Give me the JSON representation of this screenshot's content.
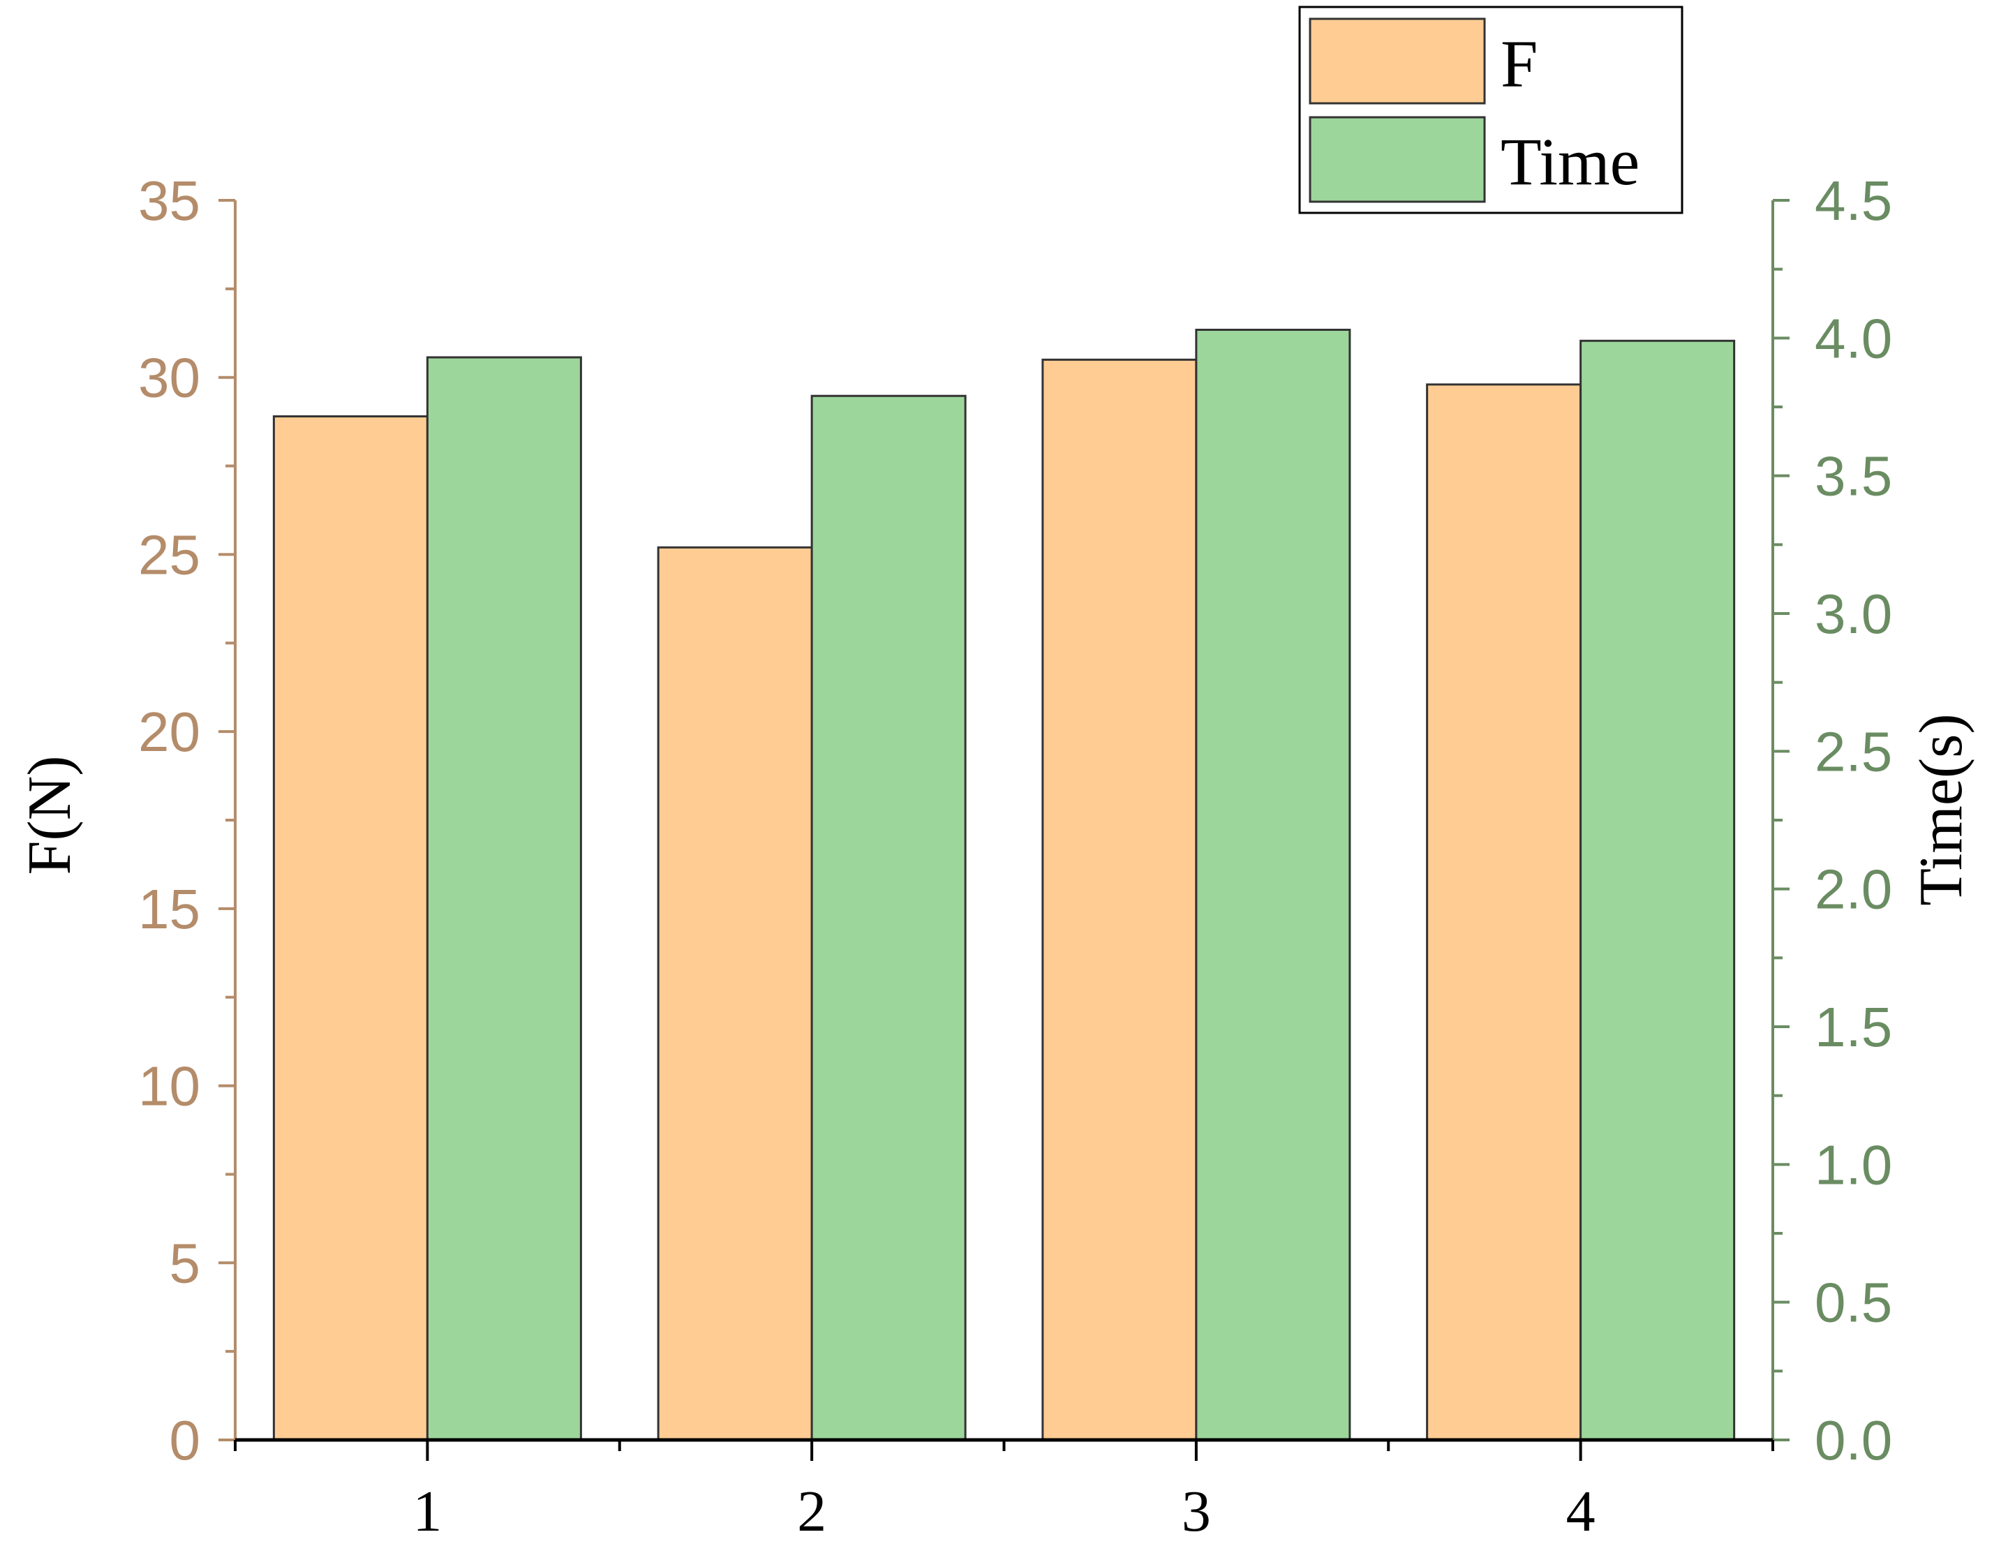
{
  "chart_data": {
    "type": "bar",
    "categories": [
      "1",
      "2",
      "3",
      "4"
    ],
    "series": [
      {
        "name": "F",
        "axis": "left",
        "values": [
          28.9,
          25.2,
          30.5,
          29.8
        ],
        "color": "#FFCD94"
      },
      {
        "name": "Time",
        "axis": "right",
        "values": [
          3.93,
          3.79,
          4.03,
          3.99
        ],
        "color": "#9DD69B"
      }
    ],
    "ylabel_left": "F(N)",
    "ylabel_right": "Time(s)",
    "xlabel": "",
    "ylim_left": [
      0,
      35
    ],
    "ylim_right": [
      0,
      4.5
    ],
    "yticks_left": [
      "0",
      "5",
      "10",
      "15",
      "20",
      "25",
      "30",
      "35"
    ],
    "yticks_right": [
      "0.0",
      "0.5",
      "1.0",
      "1.5",
      "2.0",
      "2.5",
      "3.0",
      "3.5",
      "4.0",
      "4.5"
    ],
    "legend_position": "top-right",
    "left_axis_color": "#B48C6A",
    "right_axis_color": "#6A8C62",
    "grid": false
  }
}
